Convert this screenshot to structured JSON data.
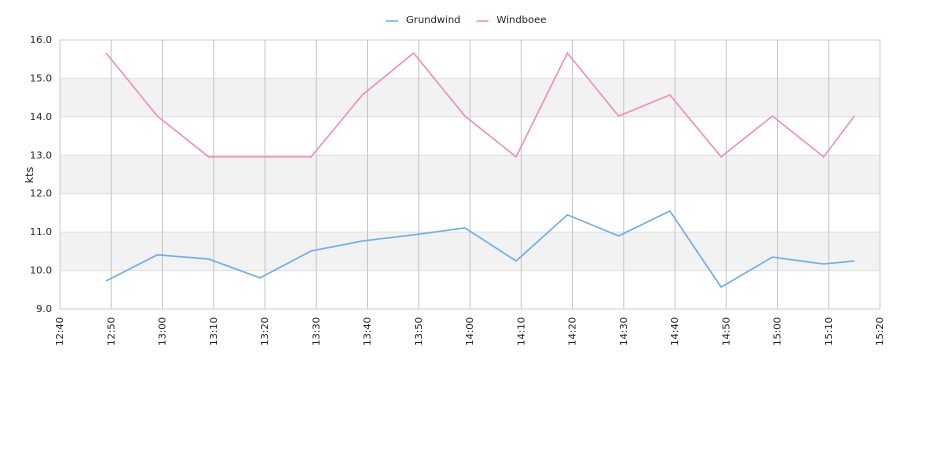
{
  "chart_data": {
    "type": "line",
    "y_label": "kts",
    "x": [
      "12:49",
      "12:59",
      "13:09",
      "13:19",
      "13:29",
      "13:39",
      "13:49",
      "13:59",
      "14:09",
      "14:19",
      "14:29",
      "14:39",
      "14:49",
      "14:59",
      "15:09",
      "15:15"
    ],
    "series": [
      {
        "name": "Grundwind",
        "color": "#6aaeec",
        "values": [
          9.73,
          10.41,
          10.3,
          9.81,
          10.51,
          10.77,
          10.93,
          11.11,
          10.25,
          11.45,
          10.9,
          11.55,
          9.57,
          10.35,
          10.17,
          10.25
        ]
      },
      {
        "name": "Windboee",
        "color": "#ef8fb8",
        "values": [
          15.66,
          14.02,
          12.96,
          12.96,
          12.96,
          14.57,
          15.66,
          14.02,
          12.96,
          15.66,
          14.02,
          14.57,
          12.96,
          14.02,
          12.96,
          14.02
        ]
      }
    ],
    "xlim": [
      "12:40",
      "15:20"
    ],
    "xticks": [
      "12:40",
      "12:50",
      "13:00",
      "13:10",
      "13:20",
      "13:30",
      "13:40",
      "13:50",
      "14:00",
      "14:10",
      "14:20",
      "14:30",
      "14:40",
      "14:50",
      "15:00",
      "15:10",
      "15:20"
    ],
    "ylim": [
      9,
      16
    ],
    "yticks": [
      {
        "value": 9,
        "label": "9.0"
      },
      {
        "value": 10,
        "label": "10.0"
      },
      {
        "value": 11,
        "label": "11.0"
      },
      {
        "value": 12,
        "label": "12.0"
      },
      {
        "value": 13,
        "label": "13.0"
      },
      {
        "value": 14,
        "label": "14.0"
      },
      {
        "value": 15,
        "label": "15.0"
      },
      {
        "value": 16,
        "label": "16.0"
      }
    ],
    "grid": true
  }
}
